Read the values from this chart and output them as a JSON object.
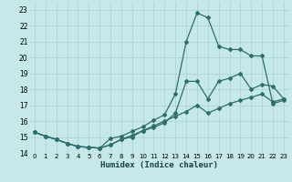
{
  "xlabel": "Humidex (Indice chaleur)",
  "bg_color": "#c6e8e8",
  "grid_color": "#b0d4d4",
  "line_color": "#2e6e6e",
  "xlim": [
    -0.5,
    23.5
  ],
  "ylim": [
    14,
    23.5
  ],
  "yticks": [
    14,
    15,
    16,
    17,
    18,
    19,
    20,
    21,
    22,
    23
  ],
  "xticks": [
    0,
    1,
    2,
    3,
    4,
    5,
    6,
    7,
    8,
    9,
    10,
    11,
    12,
    13,
    14,
    15,
    16,
    17,
    18,
    19,
    20,
    21,
    22,
    23
  ],
  "curve1_x": [
    0,
    1,
    2,
    3,
    4,
    5,
    6,
    7,
    8,
    9,
    10,
    11,
    12,
    13,
    14,
    15,
    16,
    17,
    18,
    19,
    20,
    21,
    22,
    23
  ],
  "curve1_y": [
    15.3,
    15.05,
    14.85,
    14.6,
    14.4,
    14.35,
    14.3,
    14.9,
    15.05,
    15.35,
    15.65,
    16.05,
    16.4,
    17.7,
    21.0,
    22.8,
    22.5,
    20.7,
    20.5,
    20.5,
    20.1,
    20.1,
    17.1,
    17.3
  ],
  "curve2_x": [
    0,
    1,
    2,
    3,
    4,
    5,
    6,
    7,
    8,
    9,
    10,
    11,
    12,
    13,
    14,
    15,
    16,
    17,
    18,
    19,
    20,
    21,
    22,
    23
  ],
  "curve2_y": [
    15.3,
    15.05,
    14.85,
    14.6,
    14.4,
    14.35,
    14.3,
    14.5,
    14.85,
    15.0,
    15.4,
    15.6,
    15.9,
    16.5,
    18.5,
    18.5,
    17.4,
    18.5,
    18.7,
    19.0,
    18.0,
    18.3,
    18.2,
    17.4
  ],
  "curve3_x": [
    0,
    1,
    2,
    3,
    4,
    5,
    6,
    7,
    8,
    9,
    10,
    11,
    12,
    13,
    14,
    15,
    16,
    17,
    18,
    19,
    20,
    21,
    22,
    23
  ],
  "curve3_y": [
    15.3,
    15.05,
    14.85,
    14.6,
    14.4,
    14.35,
    14.3,
    14.5,
    14.85,
    15.1,
    15.4,
    15.7,
    16.0,
    16.3,
    16.6,
    17.0,
    16.5,
    16.8,
    17.1,
    17.3,
    17.5,
    17.7,
    17.2,
    17.4
  ]
}
